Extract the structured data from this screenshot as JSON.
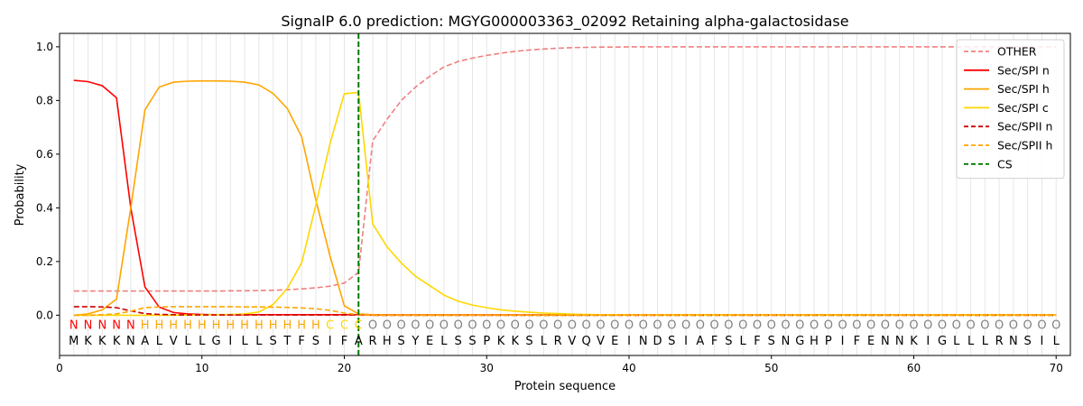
{
  "chart_data": {
    "type": "line",
    "title": "SignalP 6.0 prediction: MGYG000003363_02092 Retaining alpha-galactosidase",
    "xlabel": "Protein sequence",
    "ylabel": "Probability",
    "xlim": [
      0,
      71
    ],
    "ylim": [
      -0.15,
      1.05
    ],
    "xticks": [
      0,
      10,
      20,
      30,
      40,
      50,
      60,
      70
    ],
    "yticks": [
      "0.0",
      "0.2",
      "0.4",
      "0.6",
      "0.8",
      "1.0"
    ],
    "grid": "vertical lines at each residue",
    "legend_position": "upper right",
    "sequence": [
      "M",
      "K",
      "K",
      "K",
      "N",
      "A",
      "L",
      "V",
      "L",
      "L",
      "G",
      "I",
      "L",
      "L",
      "S",
      "T",
      "F",
      "S",
      "I",
      "F",
      "A",
      "R",
      "H",
      "S",
      "Y",
      "E",
      "L",
      "S",
      "S",
      "P",
      "K",
      "K",
      "S",
      "L",
      "R",
      "V",
      "Q",
      "V",
      "E",
      "I",
      "N",
      "D",
      "S",
      "I",
      "A",
      "F",
      "S",
      "L",
      "F",
      "S",
      "N",
      "G",
      "H",
      "P",
      "I",
      "F",
      "E",
      "N",
      "N",
      "K",
      "I",
      "G",
      "L",
      "L",
      "L",
      "R",
      "N",
      "S",
      "I",
      "L"
    ],
    "labels": [
      "N",
      "N",
      "N",
      "N",
      "N",
      "H",
      "H",
      "H",
      "H",
      "H",
      "H",
      "H",
      "H",
      "H",
      "H",
      "H",
      "H",
      "H",
      "C",
      "C",
      "C",
      "O",
      "O",
      "O",
      "O",
      "O",
      "O",
      "O",
      "O",
      "O",
      "O",
      "O",
      "O",
      "O",
      "O",
      "O",
      "O",
      "O",
      "O",
      "O",
      "O",
      "O",
      "O",
      "O",
      "O",
      "O",
      "O",
      "O",
      "O",
      "O",
      "O",
      "O",
      "O",
      "O",
      "O",
      "O",
      "O",
      "O",
      "O",
      "O",
      "O",
      "O",
      "O",
      "O",
      "O",
      "O",
      "O",
      "O",
      "O",
      "O"
    ],
    "label_colors": {
      "N": "#ff0000",
      "H": "#ffa500",
      "C": "#ffd700",
      "O": "#808080"
    },
    "cs_position": 21,
    "series": [
      {
        "name": "OTHER",
        "color": "#f08080",
        "dash": "dashed",
        "values": [
          0.09,
          0.09,
          0.09,
          0.09,
          0.09,
          0.09,
          0.09,
          0.09,
          0.09,
          0.09,
          0.09,
          0.091,
          0.091,
          0.092,
          0.093,
          0.095,
          0.098,
          0.102,
          0.108,
          0.12,
          0.16,
          0.65,
          0.73,
          0.8,
          0.85,
          0.89,
          0.925,
          0.945,
          0.958,
          0.968,
          0.976,
          0.983,
          0.988,
          0.992,
          0.995,
          0.997,
          0.998,
          0.999,
          0.999,
          1.0,
          1.0,
          1.0,
          1.0,
          1.0,
          1.0,
          1.0,
          1.0,
          1.0,
          1.0,
          1.0,
          1.0,
          1.0,
          1.0,
          1.0,
          1.0,
          1.0,
          1.0,
          1.0,
          1.0,
          1.0,
          1.0,
          1.0,
          1.0,
          1.0,
          1.0,
          1.0,
          1.0,
          1.0,
          1.0,
          1.0
        ]
      },
      {
        "name": "Sec/SPI n",
        "color": "#ff0000",
        "dash": "solid",
        "values": [
          0.875,
          0.87,
          0.855,
          0.81,
          0.4,
          0.105,
          0.03,
          0.01,
          0.005,
          0.003,
          0.002,
          0.002,
          0.002,
          0.002,
          0.002,
          0.002,
          0.002,
          0.002,
          0.002,
          0.002,
          0.002,
          0.001,
          0.001,
          0.001,
          0.001,
          0.001,
          0.001,
          0.001,
          0.001,
          0.001,
          0.001,
          0.001,
          0.001,
          0.001,
          0.001,
          0.001,
          0.001,
          0.001,
          0.001,
          0.001,
          0.001,
          0.001,
          0.001,
          0.001,
          0.001,
          0.001,
          0.001,
          0.001,
          0.001,
          0.001,
          0.001,
          0.001,
          0.001,
          0.001,
          0.001,
          0.001,
          0.001,
          0.001,
          0.001,
          0.001,
          0.001,
          0.001,
          0.001,
          0.001,
          0.001,
          0.001,
          0.001,
          0.001,
          0.001,
          0.001
        ]
      },
      {
        "name": "Sec/SPI h",
        "color": "#ffa500",
        "dash": "solid",
        "values": [
          0.0,
          0.005,
          0.02,
          0.06,
          0.4,
          0.765,
          0.85,
          0.868,
          0.872,
          0.873,
          0.873,
          0.872,
          0.868,
          0.858,
          0.826,
          0.77,
          0.665,
          0.43,
          0.22,
          0.035,
          0.005,
          0.002,
          0.001,
          0.001,
          0.001,
          0.001,
          0.001,
          0.001,
          0.001,
          0.001,
          0.001,
          0.001,
          0.001,
          0.001,
          0.001,
          0.001,
          0.001,
          0.001,
          0.001,
          0.001,
          0.001,
          0.001,
          0.001,
          0.001,
          0.001,
          0.001,
          0.001,
          0.001,
          0.001,
          0.001,
          0.001,
          0.001,
          0.001,
          0.001,
          0.001,
          0.001,
          0.001,
          0.001,
          0.001,
          0.001,
          0.001,
          0.001,
          0.001,
          0.001,
          0.001,
          0.001,
          0.001,
          0.001,
          0.001,
          0.001
        ]
      },
      {
        "name": "Sec/SPI c",
        "color": "#ffd700",
        "dash": "solid",
        "values": [
          0.0,
          0.0,
          0.0,
          0.0,
          0.0,
          0.0,
          0.0,
          0.0,
          0.001,
          0.001,
          0.002,
          0.003,
          0.005,
          0.012,
          0.04,
          0.1,
          0.195,
          0.41,
          0.64,
          0.825,
          0.83,
          0.34,
          0.255,
          0.195,
          0.145,
          0.11,
          0.075,
          0.052,
          0.038,
          0.028,
          0.02,
          0.015,
          0.011,
          0.008,
          0.006,
          0.004,
          0.003,
          0.002,
          0.002,
          0.001,
          0.001,
          0.001,
          0.001,
          0.001,
          0.001,
          0.001,
          0.001,
          0.001,
          0.001,
          0.001,
          0.001,
          0.001,
          0.001,
          0.001,
          0.001,
          0.001,
          0.001,
          0.001,
          0.001,
          0.001,
          0.001,
          0.001,
          0.001,
          0.001,
          0.001,
          0.001,
          0.001,
          0.001,
          0.001,
          0.001
        ]
      },
      {
        "name": "Sec/SPII n",
        "color": "#cc0000",
        "dash": "dashed",
        "values": [
          0.032,
          0.032,
          0.031,
          0.028,
          0.016,
          0.006,
          0.003,
          0.002,
          0.001,
          0.001,
          0.001,
          0.001,
          0.001,
          0.001,
          0.001,
          0.001,
          0.001,
          0.001,
          0.001,
          0.001,
          0.001,
          0.0,
          0.0,
          0.0,
          0.0,
          0.0,
          0.0,
          0.0,
          0.0,
          0.0,
          0.0,
          0.0,
          0.0,
          0.0,
          0.0,
          0.0,
          0.0,
          0.0,
          0.0,
          0.0,
          0.0,
          0.0,
          0.0,
          0.0,
          0.0,
          0.0,
          0.0,
          0.0,
          0.0,
          0.0,
          0.0,
          0.0,
          0.0,
          0.0,
          0.0,
          0.0,
          0.0,
          0.0,
          0.0,
          0.0,
          0.0,
          0.0,
          0.0,
          0.0,
          0.0,
          0.0,
          0.0,
          0.0,
          0.0,
          0.0
        ]
      },
      {
        "name": "Sec/SPII h",
        "color": "#ffa500",
        "dash": "dashed",
        "values": [
          0.0,
          0.0,
          0.002,
          0.005,
          0.015,
          0.028,
          0.031,
          0.032,
          0.032,
          0.032,
          0.032,
          0.032,
          0.031,
          0.031,
          0.03,
          0.029,
          0.027,
          0.024,
          0.018,
          0.008,
          0.002,
          0.0,
          0.0,
          0.0,
          0.0,
          0.0,
          0.0,
          0.0,
          0.0,
          0.0,
          0.0,
          0.0,
          0.0,
          0.0,
          0.0,
          0.0,
          0.0,
          0.0,
          0.0,
          0.0,
          0.0,
          0.0,
          0.0,
          0.0,
          0.0,
          0.0,
          0.0,
          0.0,
          0.0,
          0.0,
          0.0,
          0.0,
          0.0,
          0.0,
          0.0,
          0.0,
          0.0,
          0.0,
          0.0,
          0.0,
          0.0,
          0.0,
          0.0,
          0.0,
          0.0,
          0.0,
          0.0,
          0.0,
          0.0,
          0.0
        ]
      }
    ],
    "cs_legend": {
      "name": "CS",
      "color": "#007a00",
      "dash": "dashed"
    }
  }
}
